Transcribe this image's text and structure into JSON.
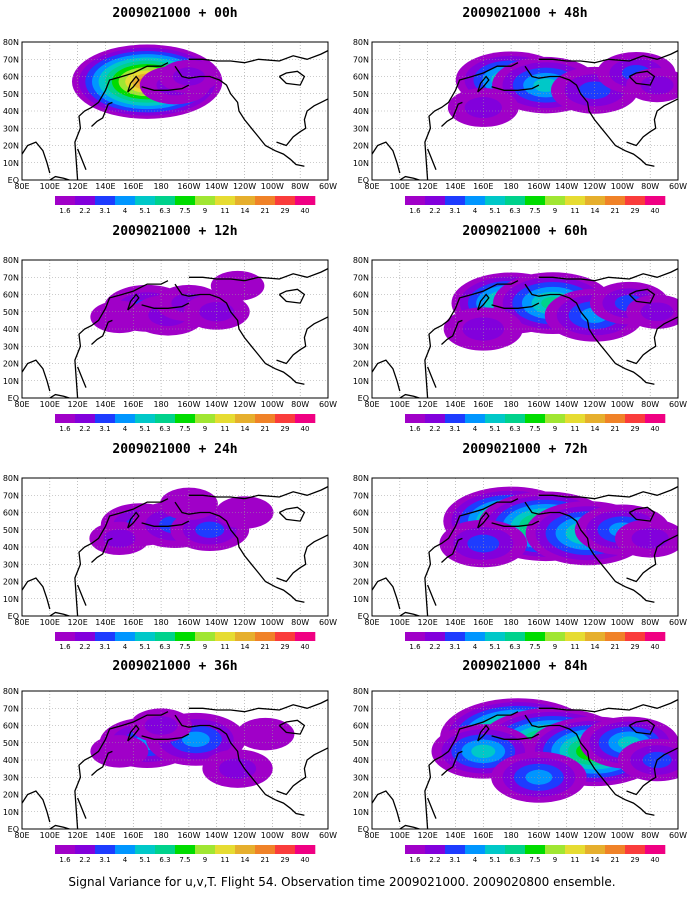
{
  "caption": "Signal Variance for u,v,T. Flight 54. Observation time 2009021000. 2009020800 ensemble.",
  "colorbar": {
    "labels": [
      "1.6",
      "2.2",
      "3.1",
      "4",
      "5.1",
      "6.3",
      "7.5",
      "9",
      "11",
      "14",
      "21",
      "29",
      "40"
    ],
    "colors": [
      "#a000c8",
      "#8200dc",
      "#1e3cff",
      "#0096ff",
      "#00c8c8",
      "#00d28c",
      "#00dc00",
      "#a0e632",
      "#e6dc32",
      "#e6af2d",
      "#f08228",
      "#fa3c3c",
      "#f00082"
    ]
  },
  "lon_labels": [
    "80E",
    "100E",
    "120E",
    "140E",
    "160E",
    "180",
    "160W",
    "140W",
    "120W",
    "100W",
    "80W",
    "60W"
  ],
  "lat_labels": [
    "80N",
    "70N",
    "60N",
    "50N",
    "40N",
    "30N",
    "20N",
    "10N",
    "EQ"
  ],
  "chart_data": [
    {
      "type": "heatmap",
      "title": "2009021000 + 00h",
      "blobs": [
        [
          170,
          57,
          2.5,
          0.6
        ],
        [
          190,
          55,
          0.5,
          0.6
        ],
        [
          200,
          60,
          0.35,
          0.5
        ]
      ]
    },
    {
      "type": "heatmap",
      "title": "2009021000 + 12h",
      "blobs": [
        [
          170,
          52,
          0.7,
          0.8
        ],
        [
          185,
          48,
          0.5,
          0.7
        ],
        [
          200,
          55,
          0.4,
          0.6
        ],
        [
          220,
          50,
          0.5,
          0.5
        ],
        [
          150,
          47,
          0.3,
          0.5
        ],
        [
          235,
          65,
          0.3,
          0.4
        ]
      ]
    },
    {
      "type": "heatmap",
      "title": "2009021000 + 24h",
      "blobs": [
        [
          165,
          53,
          0.6,
          0.7
        ],
        [
          190,
          53,
          0.7,
          0.8
        ],
        [
          215,
          50,
          0.6,
          0.7
        ],
        [
          150,
          45,
          0.35,
          0.5
        ],
        [
          240,
          60,
          0.3,
          0.5
        ],
        [
          200,
          65,
          0.3,
          0.5
        ]
      ]
    },
    {
      "type": "heatmap",
      "title": "2009021000 + 36h",
      "blobs": [
        [
          170,
          50,
          0.9,
          0.8
        ],
        [
          205,
          52,
          0.9,
          0.9
        ],
        [
          235,
          35,
          0.5,
          0.6
        ],
        [
          180,
          60,
          0.4,
          0.5
        ],
        [
          150,
          45,
          0.3,
          0.5
        ],
        [
          255,
          55,
          0.3,
          0.5
        ]
      ]
    },
    {
      "type": "heatmap",
      "title": "2009021000 + 48h",
      "blobs": [
        [
          180,
          58,
          1.4,
          0.7
        ],
        [
          205,
          55,
          1.1,
          0.9
        ],
        [
          240,
          52,
          0.7,
          0.8
        ],
        [
          270,
          62,
          0.7,
          0.6
        ],
        [
          160,
          42,
          0.4,
          0.7
        ],
        [
          285,
          55,
          0.4,
          0.5
        ]
      ]
    },
    {
      "type": "heatmap",
      "title": "2009021000 + 60h",
      "blobs": [
        [
          180,
          55,
          1.5,
          0.8
        ],
        [
          210,
          55,
          1.4,
          0.9
        ],
        [
          240,
          48,
          0.9,
          0.9
        ],
        [
          265,
          55,
          0.6,
          0.7
        ],
        [
          160,
          40,
          0.5,
          0.8
        ],
        [
          285,
          50,
          0.4,
          0.5
        ]
      ]
    },
    {
      "type": "heatmap",
      "title": "2009021000 + 72h",
      "blobs": [
        [
          180,
          55,
          1.8,
          0.9
        ],
        [
          205,
          52,
          1.7,
          1.0
        ],
        [
          235,
          48,
          1.4,
          1.0
        ],
        [
          260,
          50,
          0.9,
          0.8
        ],
        [
          160,
          42,
          0.6,
          0.9
        ],
        [
          280,
          45,
          0.5,
          0.6
        ]
      ]
    },
    {
      "type": "heatmap",
      "title": "2009021000 + 84h",
      "blobs": [
        [
          185,
          53,
          2.2,
          1.0
        ],
        [
          210,
          48,
          2.1,
          1.0
        ],
        [
          240,
          45,
          1.7,
          1.0
        ],
        [
          160,
          45,
          1.0,
          0.9
        ],
        [
          265,
          50,
          1.0,
          0.8
        ],
        [
          285,
          40,
          0.6,
          0.7
        ],
        [
          200,
          30,
          0.8,
          0.9
        ]
      ]
    }
  ]
}
